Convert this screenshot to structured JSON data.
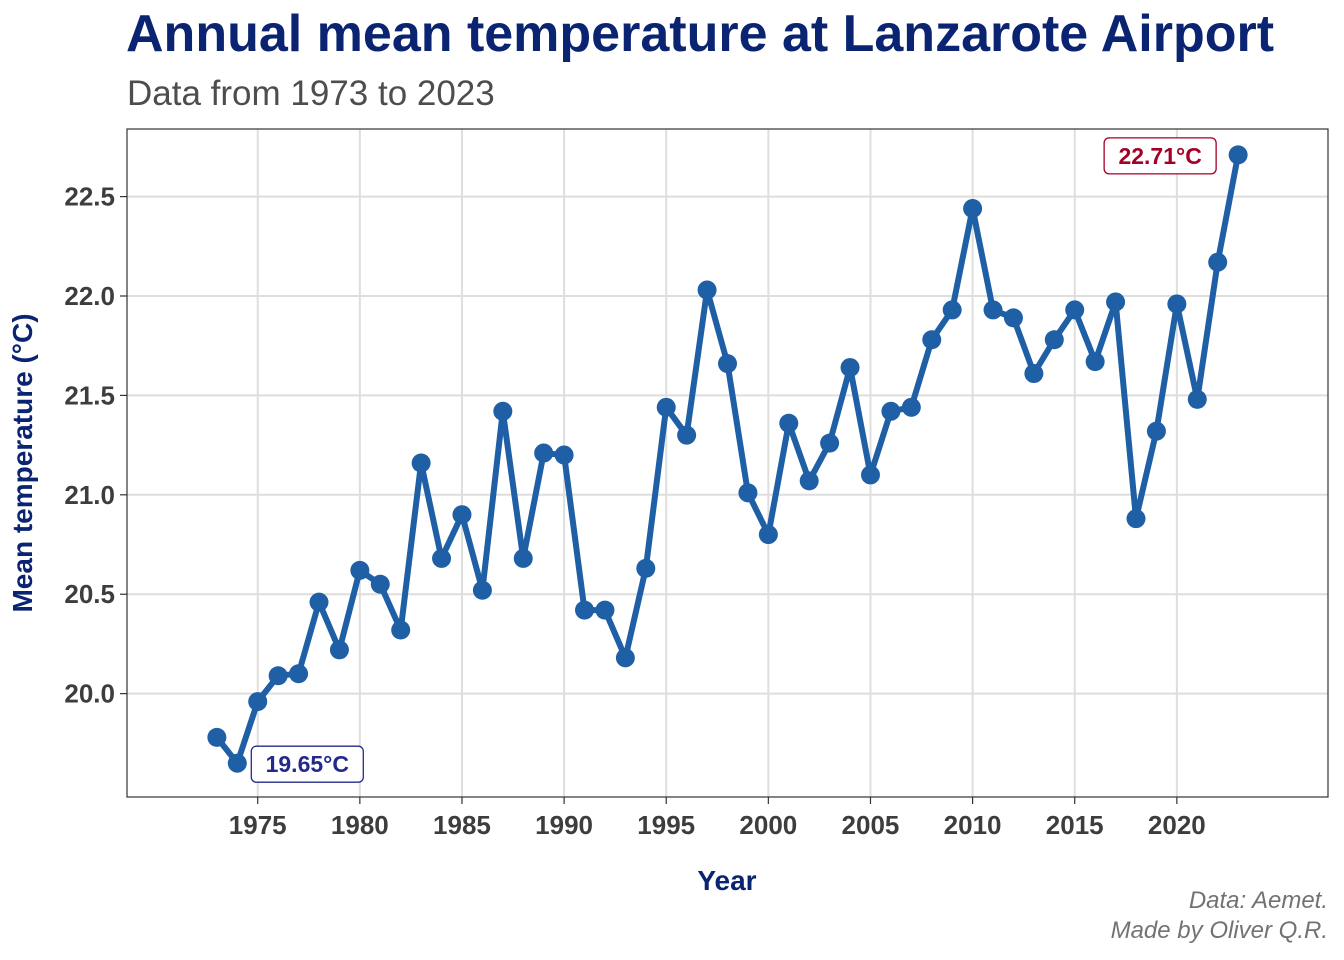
{
  "chart_data": {
    "type": "line",
    "title": "Annual mean temperature at Lanzarote Airport",
    "subtitle": "Data from 1973 to 2023",
    "xlabel": "Year",
    "ylabel": "Mean temperature (°C)",
    "xlim": [
      1968.6,
      2027.4
    ],
    "ylim": [
      19.48,
      22.84
    ],
    "x_ticks": [
      1975,
      1980,
      1985,
      1990,
      1995,
      2000,
      2005,
      2010,
      2015,
      2020
    ],
    "y_ticks": [
      20.0,
      20.5,
      21.0,
      21.5,
      22.0,
      22.5
    ],
    "y_tick_labels": [
      "20.0",
      "20.5",
      "21.0",
      "21.5",
      "22.0",
      "22.5"
    ],
    "grid": true,
    "legend": "none",
    "line_color": "#1f5fa6",
    "series": [
      {
        "x": [
          1973,
          1974,
          1975,
          1976,
          1977,
          1978,
          1979,
          1980,
          1981,
          1982,
          1983,
          1984,
          1985,
          1986,
          1987,
          1988,
          1989,
          1990,
          1991,
          1992,
          1993,
          1994,
          1995,
          1996,
          1997,
          1998,
          1999,
          2000,
          2001,
          2002,
          2003,
          2004,
          2005,
          2006,
          2007,
          2008,
          2009,
          2010,
          2011,
          2012,
          2013,
          2014,
          2015,
          2016,
          2017,
          2018,
          2019,
          2020,
          2021,
          2022,
          2023
        ],
        "values": [
          19.78,
          19.65,
          19.96,
          20.09,
          20.1,
          20.46,
          20.22,
          20.62,
          20.55,
          20.32,
          21.16,
          20.68,
          20.9,
          20.52,
          21.42,
          20.68,
          21.21,
          21.2,
          20.42,
          20.42,
          20.18,
          20.63,
          21.44,
          21.3,
          22.03,
          21.66,
          21.01,
          20.8,
          21.36,
          21.07,
          21.26,
          21.64,
          21.1,
          21.42,
          21.44,
          21.78,
          21.93,
          22.44,
          21.93,
          21.89,
          21.61,
          21.78,
          21.93,
          21.67,
          21.97,
          20.88,
          21.32,
          21.96,
          21.48,
          22.17,
          22.71
        ]
      }
    ],
    "annotations": [
      {
        "text": "22.71°C",
        "x": 2023,
        "y": 22.71,
        "color": "#a50026"
      },
      {
        "text": "19.65°C",
        "x": 1974,
        "y": 19.65,
        "color": "#232a8c"
      }
    ]
  },
  "caption": {
    "line1": "Data: Aemet.",
    "line2": "Made by Oliver Q.R."
  }
}
